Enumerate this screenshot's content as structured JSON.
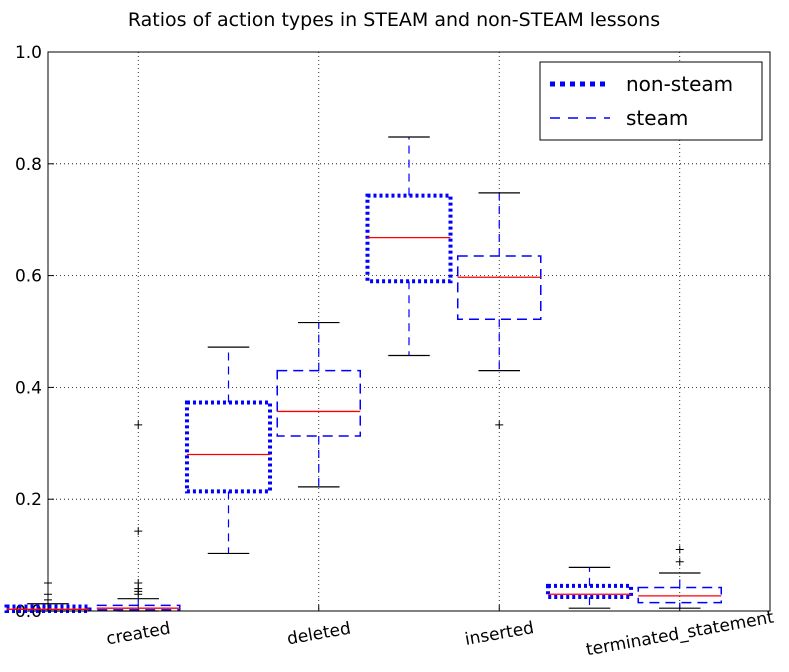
{
  "chart_data": {
    "type": "box",
    "title": "Ratios of action types in STEAM and non-STEAM lessons",
    "categories": [
      "created",
      "deleted",
      "inserted",
      "terminated_statement"
    ],
    "ylim": [
      0,
      1
    ],
    "yticks": [
      {
        "value": 0,
        "label": "0.0"
      },
      0.2,
      0.4,
      0.6,
      0.8,
      {
        "value": 1,
        "label": "1.0"
      }
    ],
    "grid": true,
    "legend": "upper right",
    "series": [
      {
        "name": "non-steam",
        "color": "#0000ff",
        "linestyle": "dotted",
        "boxes": [
          {
            "whislo": 0,
            "q1": 0,
            "med": 0.003,
            "q3": 0.008,
            "whishi": 0.013,
            "fliers": [
              0.02,
              0.03,
              0.05
            ]
          },
          {
            "whislo": 0.103,
            "q1": 0.214,
            "med": 0.28,
            "q3": 0.373,
            "whishi": 0.472,
            "fliers": []
          },
          {
            "whislo": 0.457,
            "q1": 0.59,
            "med": 0.668,
            "q3": 0.743,
            "whishi": 0.848,
            "fliers": []
          },
          {
            "whislo": 0.005,
            "q1": 0.025,
            "med": 0.03,
            "q3": 0.045,
            "whishi": 0.078,
            "fliers": []
          }
        ]
      },
      {
        "name": "steam",
        "color": "#0000ff",
        "linestyle": "dashed",
        "boxes": [
          {
            "whislo": 0,
            "q1": 0.002,
            "med": 0.005,
            "q3": 0.01,
            "whishi": 0.022,
            "fliers": [
              0.03,
              0.035,
              0.04,
              0.05,
              0.143,
              0.333
            ]
          },
          {
            "whislo": 0.222,
            "q1": 0.313,
            "med": 0.357,
            "q3": 0.43,
            "whishi": 0.516,
            "fliers": []
          },
          {
            "whislo": 0.43,
            "q1": 0.522,
            "med": 0.597,
            "q3": 0.635,
            "whishi": 0.748,
            "fliers": [
              0.333
            ]
          },
          {
            "whislo": 0.005,
            "q1": 0.015,
            "med": 0.027,
            "q3": 0.042,
            "whishi": 0.068,
            "fliers": [
              0.088,
              0.11
            ]
          }
        ]
      }
    ]
  }
}
